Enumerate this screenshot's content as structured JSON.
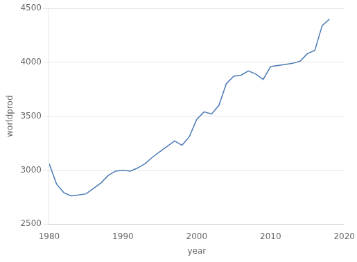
{
  "chart_data": {
    "type": "line",
    "x": [
      1980,
      1981,
      1982,
      1983,
      1984,
      1985,
      1986,
      1987,
      1988,
      1989,
      1990,
      1991,
      1992,
      1993,
      1994,
      1995,
      1996,
      1997,
      1998,
      1999,
      2000,
      2001,
      2002,
      2003,
      2004,
      2005,
      2006,
      2007,
      2008,
      2009,
      2010,
      2011,
      2012,
      2013,
      2014,
      2015,
      2016,
      2017,
      2018
    ],
    "values": [
      3060,
      2870,
      2790,
      2760,
      2770,
      2780,
      2830,
      2880,
      2950,
      2990,
      3000,
      2990,
      3020,
      3060,
      3120,
      3170,
      3220,
      3270,
      3230,
      3310,
      3470,
      3540,
      3520,
      3600,
      3800,
      3870,
      3880,
      3920,
      3890,
      3840,
      3960,
      3970,
      3980,
      3990,
      4010,
      4080,
      4110,
      4340,
      4400
    ],
    "color": "#4a7ab5",
    "xlabel": "year",
    "ylabel": "worldprod",
    "xlim": [
      1980,
      2020
    ],
    "ylim": [
      2500,
      4500
    ],
    "xticks": [
      1980,
      1990,
      2000,
      2010,
      2020
    ],
    "yticks": [
      2500,
      3000,
      3500,
      4000,
      4500
    ],
    "grid": "y"
  }
}
